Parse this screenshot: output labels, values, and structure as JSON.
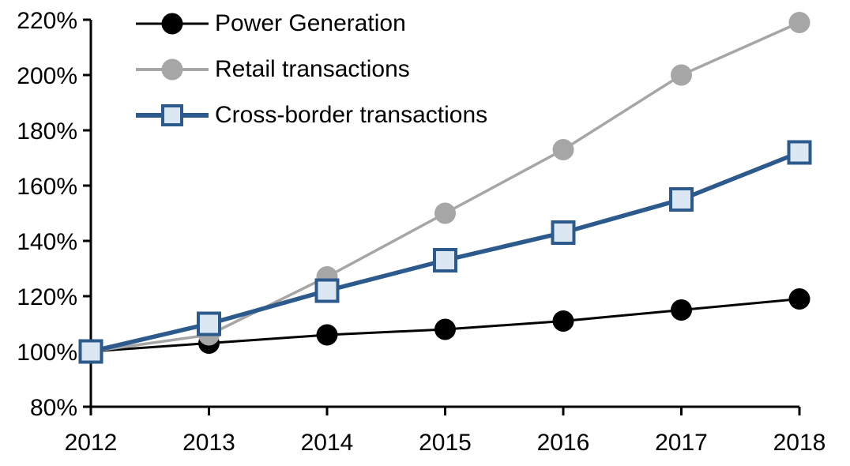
{
  "chart_data": {
    "type": "line",
    "title": "",
    "xlabel": "",
    "ylabel": "",
    "x": [
      2012,
      2013,
      2014,
      2015,
      2016,
      2017,
      2018
    ],
    "x_labels": [
      "2012",
      "2013",
      "2014",
      "2015",
      "2016",
      "2017",
      "2018"
    ],
    "ylim": [
      80,
      220
    ],
    "ytick_step": 20,
    "y_ticks": [
      {
        "value": 220,
        "label": "220%"
      },
      {
        "value": 200,
        "label": "200%"
      },
      {
        "value": 180,
        "label": "180%"
      },
      {
        "value": 160,
        "label": "160%"
      },
      {
        "value": 140,
        "label": "140%"
      },
      {
        "value": 120,
        "label": "120%"
      },
      {
        "value": 100,
        "label": "100%"
      },
      {
        "value": 80,
        "label": "80%"
      }
    ],
    "grid": false,
    "legend_position": "top-left",
    "axis_color": "#000000",
    "background_color": "#ffffff",
    "series": [
      {
        "name": "Power Generation",
        "values": [
          100,
          103,
          106,
          108,
          111,
          115,
          119
        ],
        "color": "#000000",
        "marker": "circle",
        "marker_fill": "#000000",
        "line_width": 3
      },
      {
        "name": "Retail transactions",
        "values": [
          100,
          106,
          127,
          150,
          173,
          200,
          219
        ],
        "color": "#A6A6A6",
        "marker": "circle",
        "marker_fill": "#A6A6A6",
        "line_width": 3.5
      },
      {
        "name": "Cross-border transactions",
        "values": [
          100,
          110,
          122,
          133,
          143,
          155,
          172
        ],
        "color": "#2D5A8C",
        "marker": "square",
        "marker_fill": "#DBE7F3",
        "line_width": 5.5
      }
    ]
  }
}
